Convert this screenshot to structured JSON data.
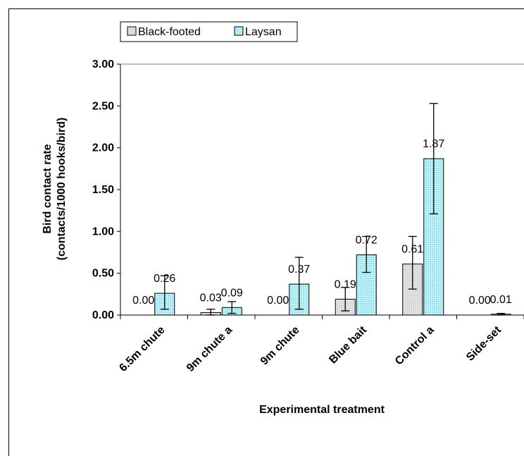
{
  "chart_data": {
    "type": "bar",
    "xlabel": "Experimental treatment",
    "ylabel_line1": "Bird contact rate",
    "ylabel_line2": "(contacts/1000 hooks/bird)",
    "categories": [
      "6.5m chute",
      "9m chute a",
      "9m chute",
      "Blue bait",
      "Control a",
      "Side-set"
    ],
    "ylim": [
      0,
      3
    ],
    "yticks": [
      "0.00",
      "0.50",
      "1.00",
      "1.50",
      "2.00",
      "2.50",
      "3.00"
    ],
    "grid": false,
    "legend_position": "top-left",
    "series": [
      {
        "name": "Black-footed",
        "values": [
          0.0,
          0.03,
          0.0,
          0.19,
          0.61,
          0.0
        ],
        "labels": [
          "0.00",
          "0.03",
          "0.00",
          "0.19",
          "0.61",
          "0.00"
        ],
        "error_low": [
          0.0,
          0.0,
          0.0,
          0.05,
          0.31,
          0.0
        ],
        "error_high": [
          0.0,
          0.07,
          0.0,
          0.33,
          0.94,
          0.0
        ],
        "color": "#d9d9d9",
        "pattern": "dots"
      },
      {
        "name": "Laysan",
        "values": [
          0.26,
          0.09,
          0.37,
          0.72,
          1.87,
          0.01
        ],
        "labels": [
          "0.26",
          "0.09",
          "0.37",
          "0.72",
          "1.87",
          "0.01"
        ],
        "error_low": [
          0.07,
          0.02,
          0.07,
          0.51,
          1.21,
          0.0
        ],
        "error_high": [
          0.47,
          0.16,
          0.69,
          0.94,
          2.53,
          0.02
        ],
        "color": "#99e6f0",
        "pattern": "grid"
      }
    ]
  }
}
